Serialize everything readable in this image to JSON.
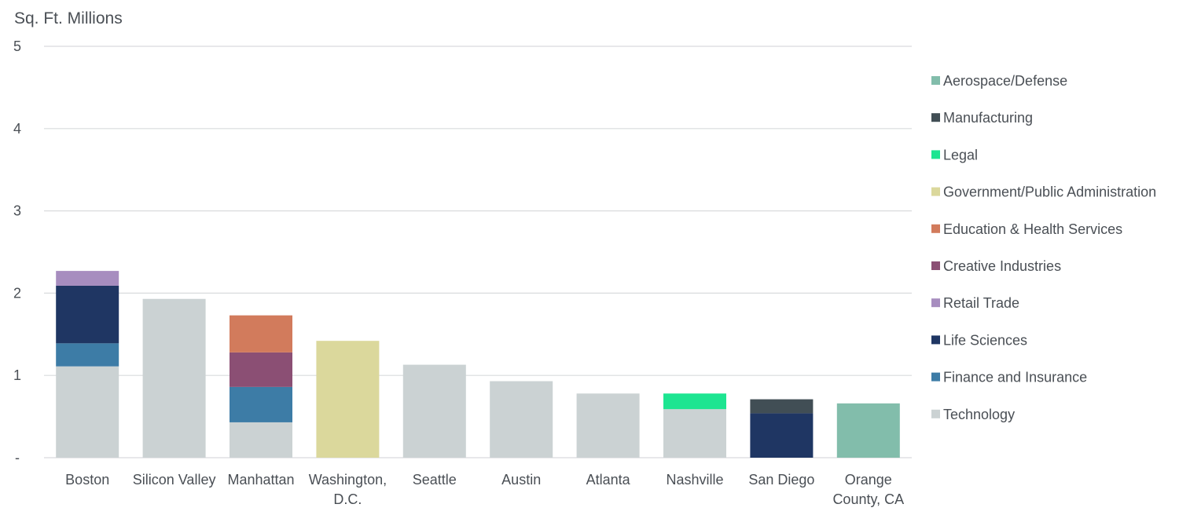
{
  "chart_data": {
    "type": "bar",
    "stacked": true,
    "title": "",
    "ylabel": "Sq. Ft. Millions",
    "xlabel": "",
    "ylim": [
      0,
      5
    ],
    "yticks": [
      {
        "value": 0,
        "label": "-"
      },
      {
        "value": 1,
        "label": "1"
      },
      {
        "value": 2,
        "label": "2"
      },
      {
        "value": 3,
        "label": "3"
      },
      {
        "value": 4,
        "label": "4"
      },
      {
        "value": 5,
        "label": "5"
      }
    ],
    "grid": true,
    "legend_position": "right",
    "categories": [
      [
        "Boston"
      ],
      [
        "Silicon Valley"
      ],
      [
        "Manhattan"
      ],
      [
        "Washington,",
        "D.C."
      ],
      [
        "Seattle"
      ],
      [
        "Austin"
      ],
      [
        "Atlanta"
      ],
      [
        "Nashville"
      ],
      [
        "San Diego"
      ],
      [
        "Orange",
        "County, CA"
      ]
    ],
    "series": [
      {
        "name": "Technology",
        "color": "#cbd2d3",
        "values": [
          1.11,
          1.93,
          0.43,
          0,
          1.13,
          0.93,
          0.78,
          0.59,
          0,
          0
        ]
      },
      {
        "name": "Finance and Insurance",
        "color": "#3d7ca6",
        "values": [
          0.28,
          0,
          0.43,
          0,
          0,
          0,
          0,
          0,
          0,
          0
        ]
      },
      {
        "name": "Life Sciences",
        "color": "#1f3663",
        "values": [
          0.7,
          0,
          0,
          0,
          0,
          0,
          0,
          0,
          0.54,
          0
        ]
      },
      {
        "name": "Retail Trade",
        "color": "#a78dbf",
        "values": [
          0.18,
          0,
          0,
          0,
          0,
          0,
          0,
          0,
          0,
          0
        ]
      },
      {
        "name": "Creative Industries",
        "color": "#8b4f74",
        "values": [
          0,
          0,
          0.42,
          0,
          0,
          0,
          0,
          0,
          0,
          0
        ]
      },
      {
        "name": "Education & Health Services",
        "color": "#d27b5c",
        "values": [
          0,
          0,
          0.45,
          0,
          0,
          0,
          0,
          0,
          0,
          0
        ]
      },
      {
        "name": "Government/Public Administration",
        "color": "#dbd89c",
        "values": [
          0,
          0,
          0,
          1.42,
          0,
          0,
          0,
          0,
          0,
          0
        ]
      },
      {
        "name": "Legal",
        "color": "#1de591",
        "values": [
          0,
          0,
          0,
          0,
          0,
          0,
          0,
          0.19,
          0,
          0
        ]
      },
      {
        "name": "Manufacturing",
        "color": "#414e55",
        "values": [
          0,
          0,
          0,
          0,
          0,
          0,
          0,
          0,
          0.17,
          0
        ]
      },
      {
        "name": "Aerospace/Defense",
        "color": "#82bdab",
        "values": [
          0,
          0,
          0,
          0,
          0,
          0,
          0,
          0,
          0,
          0.66
        ]
      }
    ],
    "legend_order": [
      "Aerospace/Defense",
      "Manufacturing",
      "Legal",
      "Government/Public Administration",
      "Education & Health Services",
      "Creative Industries",
      "Retail Trade",
      "Life Sciences",
      "Finance and Insurance",
      "Technology"
    ]
  }
}
